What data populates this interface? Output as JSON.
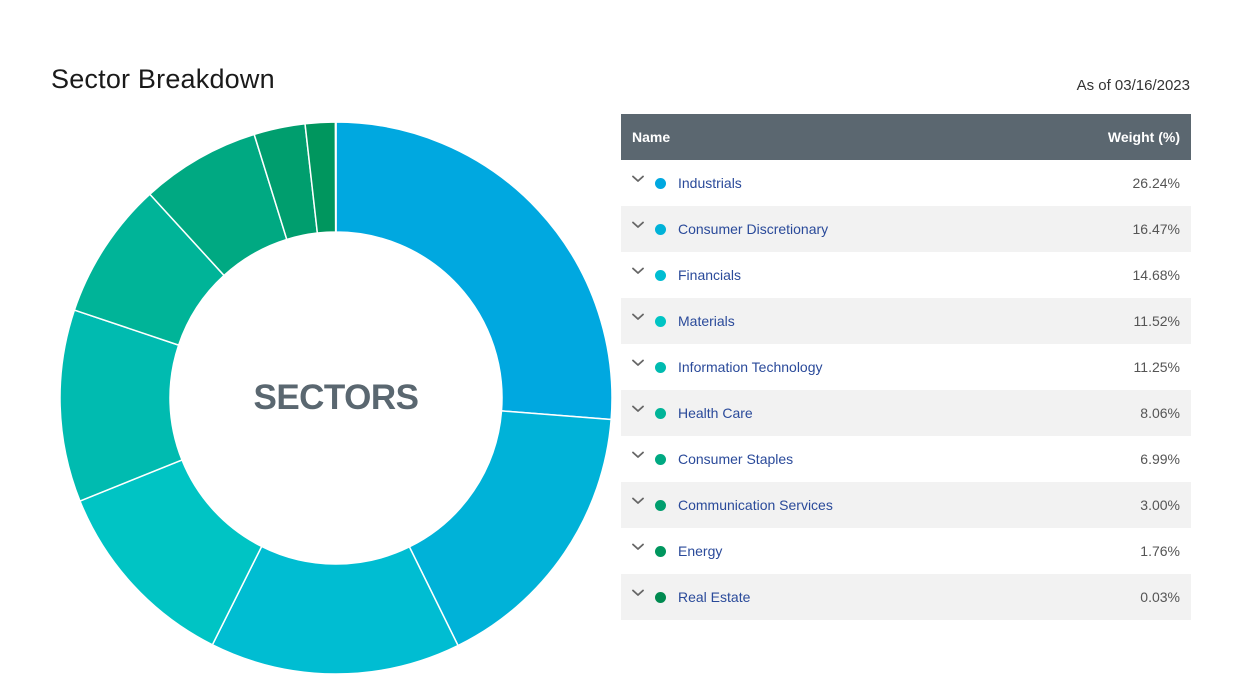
{
  "header": {
    "title": "Sector Breakdown",
    "as_of": "As of 03/16/2023"
  },
  "table": {
    "col_name": "Name",
    "col_weight": "Weight (%)"
  },
  "chart_data": {
    "type": "pie",
    "center_label": "SECTORS",
    "categories": [
      "Industrials",
      "Consumer Discretionary",
      "Financials",
      "Materials",
      "Information Technology",
      "Health Care",
      "Consumer Staples",
      "Communication Services",
      "Energy",
      "Real Estate"
    ],
    "values": [
      26.24,
      16.47,
      14.68,
      11.52,
      11.25,
      8.06,
      6.99,
      3.0,
      1.76,
      0.03
    ],
    "labels": [
      "26.24%",
      "16.47%",
      "14.68%",
      "11.52%",
      "11.25%",
      "8.06%",
      "6.99%",
      "3.00%",
      "1.76%",
      "0.03%"
    ],
    "colors": [
      "#00a8e0",
      "#00b2d8",
      "#00bdd2",
      "#00c4c4",
      "#00bbb0",
      "#00b498",
      "#00a982",
      "#009e6e",
      "#00965e",
      "#008a50"
    ]
  }
}
